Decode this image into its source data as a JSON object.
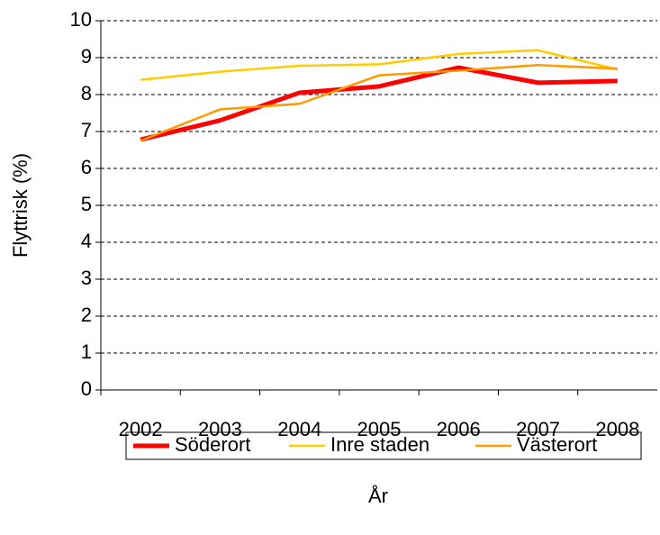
{
  "chart_data": {
    "type": "line",
    "x_label": "År",
    "y_label": "Flyttrisk (%)",
    "categories": [
      "2002",
      "2003",
      "2004",
      "2005",
      "2006",
      "2007",
      "2008"
    ],
    "series": [
      {
        "name": "Söderort",
        "color": "#ff0000",
        "values": [
          6.78,
          7.3,
          8.05,
          8.22,
          8.73,
          8.32,
          8.37
        ]
      },
      {
        "name": "Inre staden",
        "color": "#ffcc00",
        "values": [
          8.4,
          8.62,
          8.78,
          8.82,
          9.1,
          9.2,
          8.68
        ]
      },
      {
        "name": "Västerort",
        "color": "#ff9900",
        "values": [
          6.75,
          7.6,
          7.75,
          8.52,
          8.65,
          8.8,
          8.7
        ]
      }
    ],
    "ylim": [
      0,
      10
    ],
    "yticks": [
      0,
      1,
      2,
      3,
      4,
      5,
      6,
      7,
      8,
      9,
      10
    ],
    "grid": true,
    "legend": "bottom"
  }
}
